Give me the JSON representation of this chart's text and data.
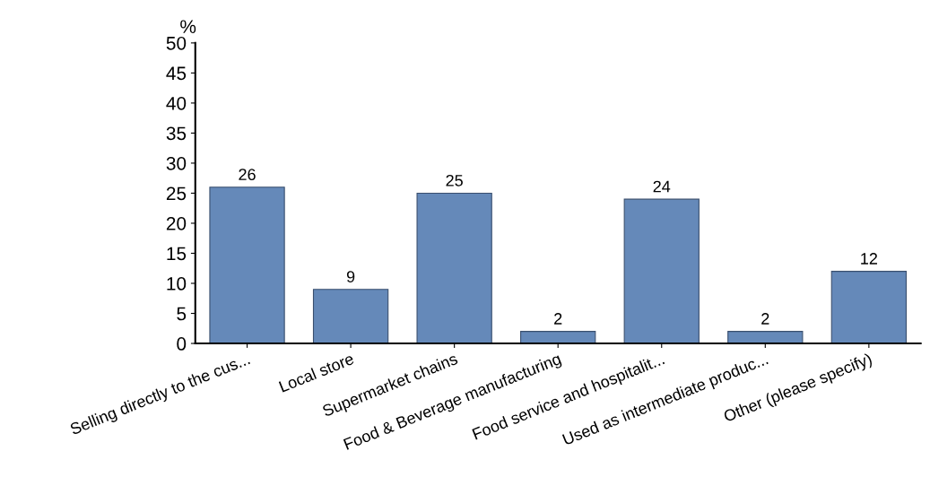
{
  "chart_data": {
    "type": "bar",
    "ylabel": "%",
    "categories": [
      "Selling directly to the cus...",
      "Local store",
      "Supermarket chains",
      "Food & Beverage manufacturing",
      "Food service and hospitalit...",
      "Used as intermediate produc...",
      "Other (please specify)"
    ],
    "values": [
      26,
      9,
      25,
      2,
      24,
      2,
      12
    ],
    "color": "#6589b9",
    "ylim": [
      0,
      50
    ],
    "yticks": [
      0,
      5,
      10,
      15,
      20,
      25,
      30,
      35,
      40,
      45,
      50
    ],
    "grid": false,
    "data_labels": true
  }
}
